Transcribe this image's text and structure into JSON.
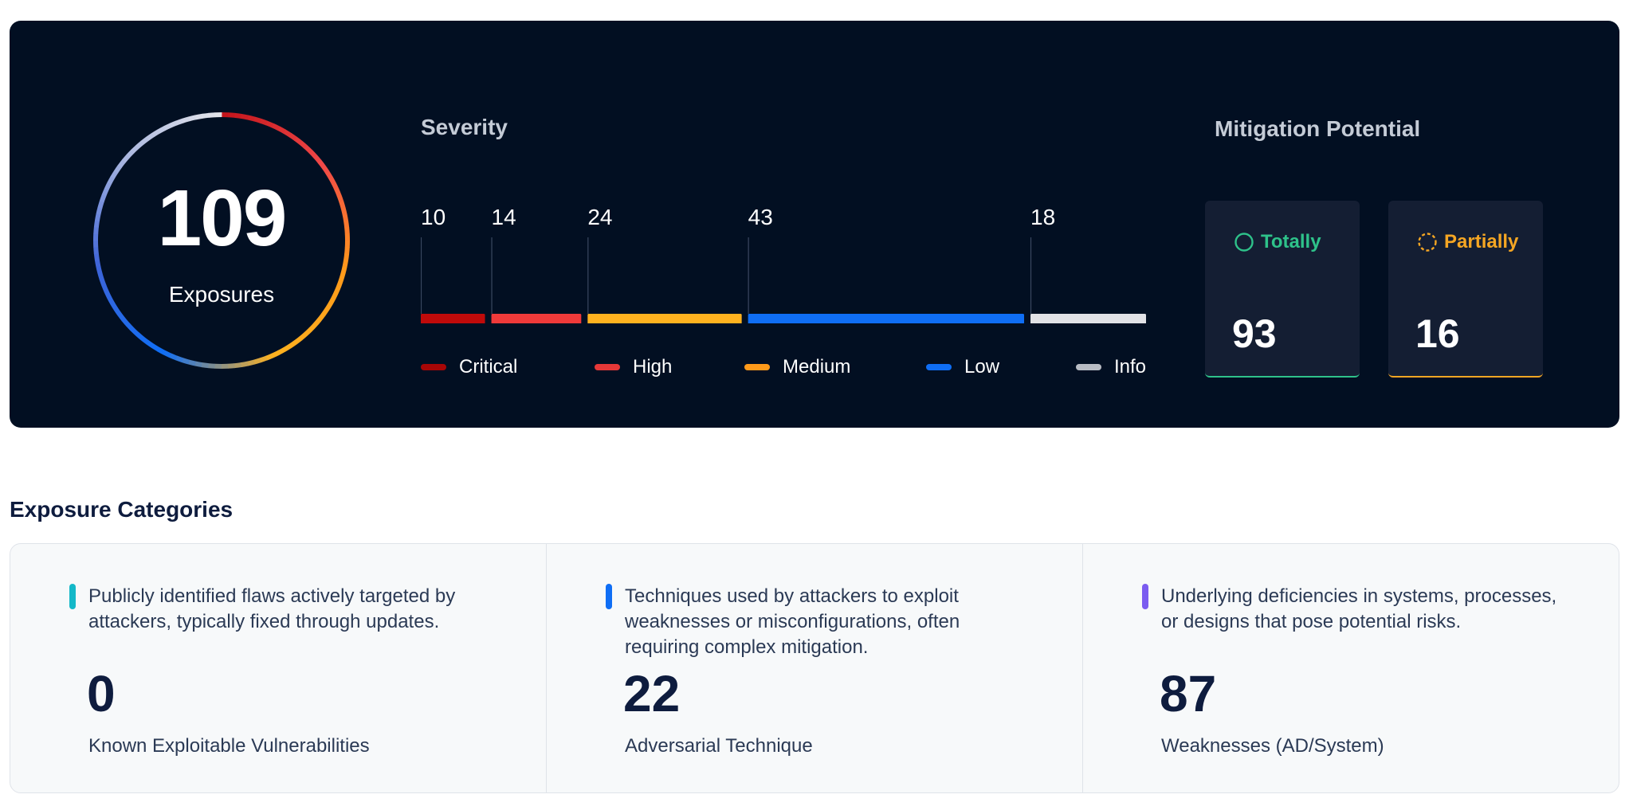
{
  "summary": {
    "total": "109",
    "total_label": "Exposures",
    "ring_colors": [
      "#c4151c",
      "#f04848",
      "#ff9a1a",
      "#ffb21f",
      "#0f6ef5",
      "#3e64d8",
      "#a9b6df",
      "#e6e6ea"
    ]
  },
  "severity": {
    "title": "Severity",
    "levels": [
      {
        "name": "Critical",
        "count": 10,
        "color": "#c00a0a"
      },
      {
        "name": "High",
        "count": 14,
        "color": "#f03a3a"
      },
      {
        "name": "Medium",
        "count": 24,
        "color": "#ffb21f"
      },
      {
        "name": "Low",
        "count": 43,
        "color": "#0f6ef5"
      },
      {
        "name": "Info",
        "count": 18,
        "color": "#e2e2e6"
      }
    ],
    "legend_colors": [
      "#a80606",
      "#e63838",
      "#ff9a1a",
      "#0f6ef5",
      "#b8bcc4"
    ]
  },
  "mitigation": {
    "title": "Mitigation Potential",
    "totally": {
      "label": "Totally",
      "value": "93",
      "color": "#2ec28a"
    },
    "partially": {
      "label": "Partially",
      "value": "16",
      "color": "#f5a623"
    }
  },
  "categories": {
    "title": "Exposure Categories",
    "items": [
      {
        "description": "Publicly identified flaws actively targeted by attackers, typically fixed through updates.",
        "value": "0",
        "label": "Known Exploitable Vulnerabilities",
        "accent": "#14b8c8"
      },
      {
        "description": "Techniques used by attackers to exploit weaknesses or misconfigurations, often requiring complex mitigation.",
        "value": "22",
        "label": "Adversarial Technique",
        "accent": "#0f6ef5"
      },
      {
        "description": "Underlying deficiencies in systems, processes, or designs that pose potential risks.",
        "value": "87",
        "label": "Weaknesses (AD/System)",
        "accent": "#7b5cf0"
      }
    ]
  }
}
